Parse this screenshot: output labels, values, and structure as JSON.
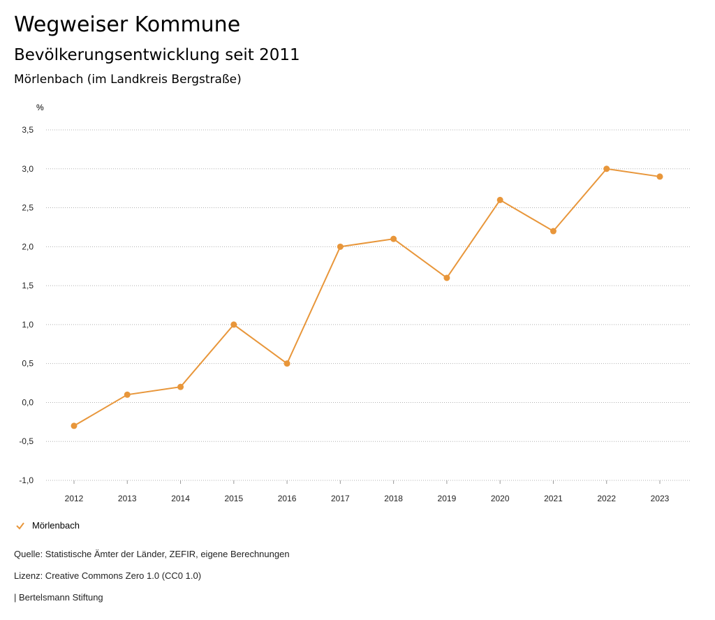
{
  "header": {
    "title": "Wegweiser Kommune",
    "subtitle": "Bevölkerungsentwicklung seit 2011",
    "place": "Mörlenbach (im Landkreis Bergstraße)"
  },
  "chart_data": {
    "type": "line",
    "ylabel": "%",
    "x": [
      "2012",
      "2013",
      "2014",
      "2015",
      "2016",
      "2017",
      "2018",
      "2019",
      "2020",
      "2021",
      "2022",
      "2023"
    ],
    "series": [
      {
        "name": "Mörlenbach",
        "color": "#e8963a",
        "values": [
          -0.3,
          0.1,
          0.2,
          1.0,
          0.5,
          2.0,
          2.1,
          1.6,
          2.6,
          2.2,
          3.0,
          2.9
        ]
      }
    ],
    "ylim": [
      -1.0,
      3.5
    ],
    "yticks": [
      "-1,0",
      "-0,5",
      "0,0",
      "0,5",
      "1,0",
      "1,5",
      "2,0",
      "2,5",
      "3,0",
      "3,5"
    ],
    "grid": true,
    "legend_position": "bottom-left"
  },
  "footer": {
    "source": "Quelle: Statistische Ämter der Länder, ZEFIR, eigene Berechnungen",
    "license": "Lizenz: Creative Commons Zero 1.0 (CC0 1.0)",
    "brand": "| Bertelsmann Stiftung"
  }
}
